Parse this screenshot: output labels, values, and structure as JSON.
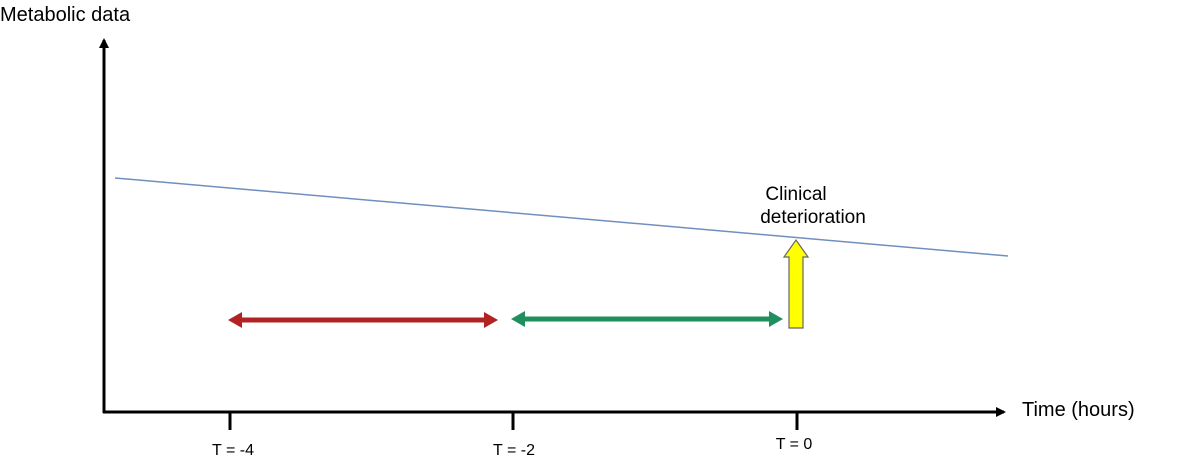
{
  "diagram": {
    "y_axis_label": "Metabolic data",
    "x_axis_label": "Time (hours)",
    "ticks": [
      {
        "label": "T = -4"
      },
      {
        "label": "T = -2"
      },
      {
        "label": "T = 0"
      }
    ],
    "event": {
      "line1": "Clinical",
      "line2": "deterioration"
    },
    "colors": {
      "axis": "#000000",
      "trend_line": "#6f8fbf",
      "early_window_arrow": "#b22222",
      "late_window_arrow": "#1f8f5f",
      "event_arrow_fill": "#ffff00",
      "event_arrow_stroke": "#666666"
    }
  }
}
